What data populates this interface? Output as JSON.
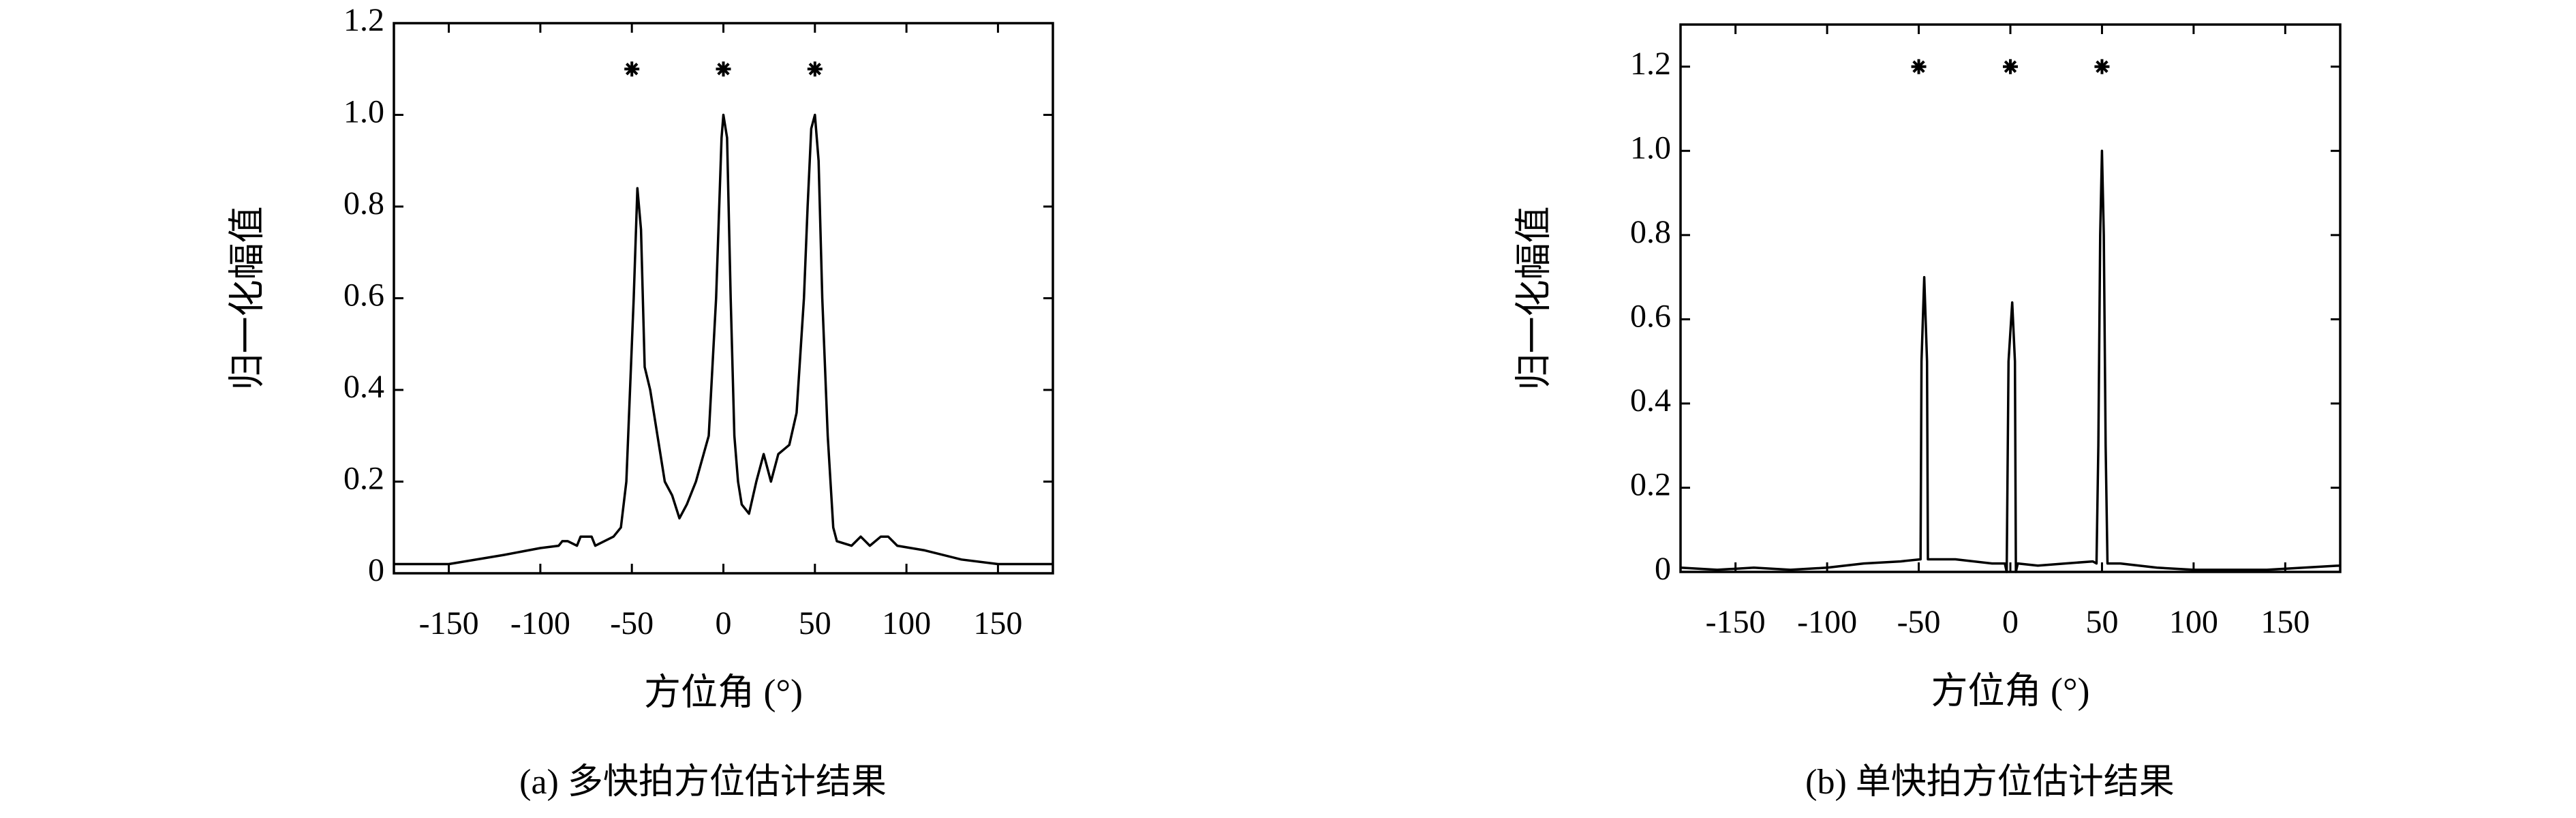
{
  "chart_data": [
    {
      "type": "line",
      "caption": "(a) 多快拍方位估计结果",
      "x_label": "方位角 (°)",
      "y_label": "归一化幅值",
      "xlim": [
        -180,
        180
      ],
      "xticks": [
        -150,
        -100,
        -50,
        0,
        50,
        100,
        150
      ],
      "ylim": [
        0,
        1.2
      ],
      "yticks": [
        0,
        0.2,
        0.4,
        0.6,
        0.8,
        {
          "value": 1,
          "label": "1.0"
        },
        1.2
      ],
      "color": "#000000",
      "x": [
        -180,
        -150,
        -120,
        -100,
        -90,
        -88,
        -85,
        -80,
        -78,
        -72,
        -70,
        -60,
        -56,
        -53,
        -51,
        -49,
        -47,
        -45,
        -43,
        -40,
        -36,
        -32,
        -28,
        -24,
        -20,
        -15,
        -8,
        -4,
        -1,
        0,
        2,
        4,
        6,
        8,
        10,
        14,
        18,
        22,
        26,
        30,
        36,
        40,
        44,
        46,
        48,
        50,
        52,
        54,
        57,
        60,
        62,
        70,
        75,
        80,
        86,
        90,
        95,
        110,
        130,
        150,
        180
      ],
      "values": [
        0.02,
        0.02,
        0.04,
        0.055,
        0.06,
        0.07,
        0.07,
        0.06,
        0.08,
        0.08,
        0.06,
        0.08,
        0.1,
        0.2,
        0.4,
        0.6,
        0.84,
        0.75,
        0.45,
        0.4,
        0.3,
        0.2,
        0.17,
        0.12,
        0.15,
        0.2,
        0.3,
        0.6,
        0.95,
        1.0,
        0.95,
        0.6,
        0.3,
        0.2,
        0.15,
        0.13,
        0.2,
        0.26,
        0.2,
        0.26,
        0.28,
        0.35,
        0.6,
        0.8,
        0.97,
        1.0,
        0.9,
        0.6,
        0.3,
        0.1,
        0.07,
        0.06,
        0.08,
        0.06,
        0.08,
        0.08,
        0.06,
        0.05,
        0.03,
        0.02,
        0.02
      ],
      "markers": {
        "x": [
          -50,
          0,
          50
        ],
        "y": [
          1.1,
          1.1,
          1.1
        ]
      }
    },
    {
      "type": "line",
      "caption": "(b) 单快拍方位估计结果",
      "x_label": "方位角 (°)",
      "y_label": "归一化幅值",
      "xlim": [
        -180,
        180
      ],
      "xticks": [
        -150,
        -100,
        -50,
        0,
        50,
        100,
        150
      ],
      "ylim": [
        0,
        1.3
      ],
      "yticks": [
        0,
        0.2,
        0.4,
        0.6,
        0.8,
        {
          "value": 1,
          "label": "1.0"
        },
        1.2
      ],
      "color": "#000000",
      "x": [
        -180,
        -160,
        -140,
        -120,
        -100,
        -80,
        -60,
        -49,
        -48.5,
        -47,
        -45.5,
        -45,
        -30,
        -10,
        -3,
        -2,
        -1,
        1,
        2.5,
        3,
        4,
        15,
        30,
        45,
        47,
        48,
        49,
        50,
        51,
        52,
        53,
        60,
        80,
        100,
        140,
        160,
        180
      ],
      "values": [
        0.01,
        0.005,
        0.01,
        0.005,
        0.01,
        0.02,
        0.025,
        0.03,
        0.5,
        0.7,
        0.5,
        0.03,
        0.03,
        0.02,
        0.02,
        0,
        0.5,
        0.64,
        0.5,
        0,
        0.02,
        0.015,
        0.02,
        0.025,
        0.02,
        0.3,
        0.8,
        1.0,
        0.8,
        0.3,
        0.02,
        0.02,
        0.01,
        0.005,
        0.005,
        0.01,
        0.015
      ],
      "markers": {
        "x": [
          -50,
          0,
          50
        ],
        "y": [
          1.2,
          1.2,
          1.2
        ]
      }
    }
  ]
}
